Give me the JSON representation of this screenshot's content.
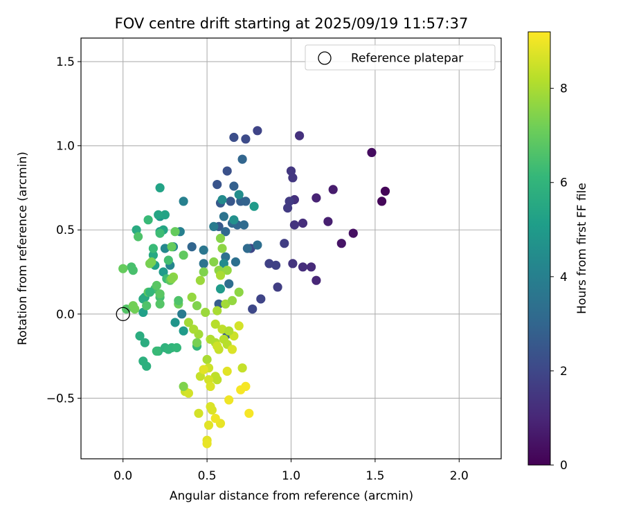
{
  "chart_data": {
    "type": "scatter",
    "title": "FOV centre drift starting at 2025/09/19 11:57:37",
    "xlabel": "Angular distance from reference (arcmin)",
    "ylabel": "Rotation from reference (arcmin)",
    "xlim": [
      -0.25,
      2.25
    ],
    "ylim": [
      -0.86,
      1.64
    ],
    "xticks": [
      0.0,
      0.5,
      1.0,
      1.5,
      2.0
    ],
    "xtick_labels": [
      "0.0",
      "0.5",
      "1.0",
      "1.5",
      "2.0"
    ],
    "yticks": [
      -0.5,
      0.0,
      0.5,
      1.0,
      1.5
    ],
    "ytick_labels": [
      "−0.5",
      "0.0",
      "0.5",
      "1.0",
      "1.5"
    ],
    "grid": true,
    "legend": {
      "placement": "top-right",
      "entries": [
        "Reference platepar"
      ]
    },
    "colorbar": {
      "label": "Hours from first FF file",
      "range": [
        0,
        9.2
      ],
      "ticks": [
        0,
        2,
        4,
        6,
        8
      ],
      "tick_labels": [
        "0",
        "2",
        "4",
        "6",
        "8"
      ],
      "colormap": "viridis"
    },
    "reference_point": {
      "x": 0.0,
      "y": 0.0
    },
    "colormap_stops": [
      "#440154",
      "#482878",
      "#3e4989",
      "#31688e",
      "#26828e",
      "#1f9e89",
      "#35b779",
      "#6ece58",
      "#b5de2b",
      "#fde725"
    ],
    "points": [
      {
        "x": 1.56,
        "y": 0.73,
        "h": 0.1
      },
      {
        "x": 1.54,
        "y": 0.67,
        "h": 0.15
      },
      {
        "x": 1.48,
        "y": 0.96,
        "h": 0.3
      },
      {
        "x": 1.37,
        "y": 0.48,
        "h": 0.4
      },
      {
        "x": 1.3,
        "y": 0.42,
        "h": 0.5
      },
      {
        "x": 1.25,
        "y": 0.74,
        "h": 0.7
      },
      {
        "x": 1.22,
        "y": 0.55,
        "h": 0.8
      },
      {
        "x": 1.15,
        "y": 0.69,
        "h": 0.9
      },
      {
        "x": 1.15,
        "y": 0.2,
        "h": 1.0
      },
      {
        "x": 1.12,
        "y": 0.28,
        "h": 1.1
      },
      {
        "x": 1.07,
        "y": 0.28,
        "h": 1.2
      },
      {
        "x": 1.07,
        "y": 0.54,
        "h": 1.2
      },
      {
        "x": 1.05,
        "y": 1.06,
        "h": 1.3
      },
      {
        "x": 1.02,
        "y": 0.68,
        "h": 1.3
      },
      {
        "x": 1.02,
        "y": 0.53,
        "h": 1.4
      },
      {
        "x": 1.01,
        "y": 0.3,
        "h": 1.4
      },
      {
        "x": 1.0,
        "y": 0.85,
        "h": 1.5
      },
      {
        "x": 1.01,
        "y": 0.81,
        "h": 1.5
      },
      {
        "x": 0.99,
        "y": 0.67,
        "h": 1.6
      },
      {
        "x": 0.98,
        "y": 0.63,
        "h": 1.6
      },
      {
        "x": 0.96,
        "y": 0.42,
        "h": 1.7
      },
      {
        "x": 0.92,
        "y": 0.16,
        "h": 1.7
      },
      {
        "x": 0.91,
        "y": 0.29,
        "h": 1.8
      },
      {
        "x": 0.87,
        "y": 0.3,
        "h": 1.8
      },
      {
        "x": 0.82,
        "y": 0.09,
        "h": 1.9
      },
      {
        "x": 0.8,
        "y": 1.09,
        "h": 1.9
      },
      {
        "x": 0.77,
        "y": 0.03,
        "h": 2.0
      },
      {
        "x": 0.76,
        "y": 0.39,
        "h": 2.0
      },
      {
        "x": 0.73,
        "y": 1.04,
        "h": 2.1
      },
      {
        "x": 0.66,
        "y": 1.05,
        "h": 2.2
      },
      {
        "x": 0.62,
        "y": 0.85,
        "h": 2.3
      },
      {
        "x": 0.56,
        "y": 0.77,
        "h": 2.4
      },
      {
        "x": 0.64,
        "y": 0.67,
        "h": 2.5
      },
      {
        "x": 0.58,
        "y": 0.66,
        "h": 2.6
      },
      {
        "x": 0.57,
        "y": 0.52,
        "h": 2.6
      },
      {
        "x": 0.57,
        "y": 0.06,
        "h": 2.7
      },
      {
        "x": 0.62,
        "y": -0.12,
        "h": 2.7
      },
      {
        "x": 0.66,
        "y": 0.76,
        "h": 2.8
      },
      {
        "x": 0.7,
        "y": 0.67,
        "h": 2.8
      },
      {
        "x": 0.73,
        "y": 0.67,
        "h": 2.9
      },
      {
        "x": 0.71,
        "y": 0.92,
        "h": 3.0
      },
      {
        "x": 0.68,
        "y": 0.53,
        "h": 3.0
      },
      {
        "x": 0.65,
        "y": 0.54,
        "h": 3.1
      },
      {
        "x": 0.61,
        "y": 0.49,
        "h": 3.1
      },
      {
        "x": 0.72,
        "y": 0.53,
        "h": 3.2
      },
      {
        "x": 0.74,
        "y": 0.39,
        "h": 3.2
      },
      {
        "x": 0.8,
        "y": 0.41,
        "h": 3.3
      },
      {
        "x": 0.63,
        "y": 0.18,
        "h": 3.3
      },
      {
        "x": 0.61,
        "y": 0.34,
        "h": 3.4
      },
      {
        "x": 0.67,
        "y": 0.31,
        "h": 3.4
      },
      {
        "x": 0.6,
        "y": 0.58,
        "h": 3.5
      },
      {
        "x": 0.41,
        "y": 0.4,
        "h": 3.0
      },
      {
        "x": 0.48,
        "y": 0.3,
        "h": 3.5
      },
      {
        "x": 0.48,
        "y": 0.38,
        "h": 3.6
      },
      {
        "x": 0.35,
        "y": 0.0,
        "h": 3.8
      },
      {
        "x": 0.54,
        "y": 0.52,
        "h": 3.8
      },
      {
        "x": 0.36,
        "y": 0.67,
        "h": 4.0
      },
      {
        "x": 0.34,
        "y": 0.49,
        "h": 4.0
      },
      {
        "x": 0.3,
        "y": 0.4,
        "h": 4.2
      },
      {
        "x": 0.28,
        "y": 0.29,
        "h": 4.2
      },
      {
        "x": 0.25,
        "y": 0.39,
        "h": 4.3
      },
      {
        "x": 0.59,
        "y": 0.68,
        "h": 4.4
      },
      {
        "x": 0.6,
        "y": 0.3,
        "h": 4.4
      },
      {
        "x": 0.69,
        "y": 0.71,
        "h": 4.5
      },
      {
        "x": 0.66,
        "y": 0.56,
        "h": 4.6
      },
      {
        "x": 0.78,
        "y": 0.64,
        "h": 5.0
      },
      {
        "x": 0.58,
        "y": 0.15,
        "h": 5.0
      },
      {
        "x": 0.31,
        "y": -0.05,
        "h": 4.8
      },
      {
        "x": 0.36,
        "y": -0.1,
        "h": 5.0
      },
      {
        "x": 0.22,
        "y": 0.58,
        "h": 4.8
      },
      {
        "x": 0.24,
        "y": 0.25,
        "h": 5.0
      },
      {
        "x": 0.22,
        "y": 0.49,
        "h": 5.1
      },
      {
        "x": 0.19,
        "y": 0.29,
        "h": 5.2
      },
      {
        "x": 0.12,
        "y": 0.01,
        "h": 5.2
      },
      {
        "x": 0.22,
        "y": 0.75,
        "h": 5.3
      },
      {
        "x": 0.25,
        "y": 0.59,
        "h": 5.3
      },
      {
        "x": 0.24,
        "y": 0.5,
        "h": 5.4
      },
      {
        "x": 0.21,
        "y": 0.59,
        "h": 5.4
      },
      {
        "x": 0.18,
        "y": 0.35,
        "h": 5.5
      },
      {
        "x": 0.13,
        "y": 0.1,
        "h": 5.5
      },
      {
        "x": 0.12,
        "y": 0.09,
        "h": 5.6
      },
      {
        "x": 0.08,
        "y": 0.5,
        "h": 5.6
      },
      {
        "x": 0.1,
        "y": -0.13,
        "h": 5.7
      },
      {
        "x": 0.13,
        "y": -0.17,
        "h": 5.7
      },
      {
        "x": 0.12,
        "y": -0.28,
        "h": 5.8
      },
      {
        "x": 0.14,
        "y": -0.31,
        "h": 5.8
      },
      {
        "x": 0.21,
        "y": -0.22,
        "h": 5.9
      },
      {
        "x": 0.25,
        "y": -0.2,
        "h": 5.9
      },
      {
        "x": 0.27,
        "y": -0.21,
        "h": 6.0
      },
      {
        "x": 0.29,
        "y": -0.2,
        "h": 6.0
      },
      {
        "x": 0.32,
        "y": -0.2,
        "h": 6.1
      },
      {
        "x": 0.44,
        "y": -0.19,
        "h": 6.1
      },
      {
        "x": 0.15,
        "y": 0.56,
        "h": 6.2
      },
      {
        "x": 0.18,
        "y": 0.39,
        "h": 6.2
      },
      {
        "x": 0.22,
        "y": 0.48,
        "h": 6.3
      },
      {
        "x": 0.26,
        "y": 0.21,
        "h": 6.3
      },
      {
        "x": 0.19,
        "y": 0.15,
        "h": 6.4
      },
      {
        "x": 0.22,
        "y": 0.1,
        "h": 6.4
      },
      {
        "x": 0.05,
        "y": 0.28,
        "h": 6.5
      },
      {
        "x": 0.06,
        "y": 0.26,
        "h": 6.5
      },
      {
        "x": 0.09,
        "y": 0.46,
        "h": 6.6
      },
      {
        "x": 0.14,
        "y": 0.05,
        "h": 6.6
      },
      {
        "x": 0.02,
        "y": 0.03,
        "h": 6.7
      },
      {
        "x": 0.22,
        "y": 0.06,
        "h": 6.7
      },
      {
        "x": 0.22,
        "y": 0.12,
        "h": 6.8
      },
      {
        "x": 0.2,
        "y": 0.17,
        "h": 6.8
      },
      {
        "x": 0.28,
        "y": 0.2,
        "h": 6.9
      },
      {
        "x": 0.36,
        "y": 0.35,
        "h": 6.9
      },
      {
        "x": 0.29,
        "y": 0.4,
        "h": 7.0
      },
      {
        "x": 0.31,
        "y": 0.49,
        "h": 7.0
      },
      {
        "x": 0.33,
        "y": 0.06,
        "h": 7.1
      },
      {
        "x": 0.0,
        "y": 0.27,
        "h": 7.0
      },
      {
        "x": 0.06,
        "y": 0.05,
        "h": 7.2
      },
      {
        "x": 0.07,
        "y": 0.03,
        "h": 7.2
      },
      {
        "x": 0.17,
        "y": 0.31,
        "h": 7.3
      },
      {
        "x": 0.16,
        "y": 0.3,
        "h": 7.3
      },
      {
        "x": 0.44,
        "y": 0.05,
        "h": 7.4
      },
      {
        "x": 0.48,
        "y": 0.25,
        "h": 7.4
      },
      {
        "x": 0.58,
        "y": 0.45,
        "h": 7.5
      },
      {
        "x": 0.54,
        "y": 0.31,
        "h": 7.5
      },
      {
        "x": 0.57,
        "y": 0.26,
        "h": 7.6
      },
      {
        "x": 0.59,
        "y": 0.39,
        "h": 7.6
      },
      {
        "x": 0.62,
        "y": 0.26,
        "h": 7.7
      },
      {
        "x": 0.41,
        "y": 0.1,
        "h": 7.7
      },
      {
        "x": 0.46,
        "y": 0.2,
        "h": 7.8
      },
      {
        "x": 0.49,
        "y": 0.01,
        "h": 7.8
      },
      {
        "x": 0.39,
        "y": -0.05,
        "h": 7.9
      },
      {
        "x": 0.45,
        "y": -0.12,
        "h": 7.9
      },
      {
        "x": 0.42,
        "y": -0.09,
        "h": 8.0
      },
      {
        "x": 0.5,
        "y": -0.27,
        "h": 8.0
      },
      {
        "x": 0.52,
        "y": -0.15,
        "h": 8.1
      },
      {
        "x": 0.55,
        "y": -0.17,
        "h": 8.1
      },
      {
        "x": 0.6,
        "y": -0.15,
        "h": 8.2
      },
      {
        "x": 0.62,
        "y": -0.18,
        "h": 8.2
      },
      {
        "x": 0.56,
        "y": -0.39,
        "h": 8.3
      },
      {
        "x": 0.55,
        "y": -0.37,
        "h": 8.3
      },
      {
        "x": 0.46,
        "y": -0.37,
        "h": 8.4
      },
      {
        "x": 0.48,
        "y": -0.33,
        "h": 8.4
      },
      {
        "x": 0.51,
        "y": -0.32,
        "h": 8.5
      },
      {
        "x": 0.37,
        "y": -0.46,
        "h": 8.5
      },
      {
        "x": 0.39,
        "y": -0.47,
        "h": 8.6
      },
      {
        "x": 0.45,
        "y": -0.59,
        "h": 8.6
      },
      {
        "x": 0.52,
        "y": -0.55,
        "h": 8.7
      },
      {
        "x": 0.53,
        "y": -0.57,
        "h": 8.7
      },
      {
        "x": 0.51,
        "y": -0.66,
        "h": 8.8
      },
      {
        "x": 0.5,
        "y": -0.75,
        "h": 8.8
      },
      {
        "x": 0.5,
        "y": -0.77,
        "h": 8.9
      },
      {
        "x": 0.58,
        "y": -0.65,
        "h": 8.9
      },
      {
        "x": 0.55,
        "y": -0.62,
        "h": 9.0
      },
      {
        "x": 0.63,
        "y": -0.51,
        "h": 9.0
      },
      {
        "x": 0.7,
        "y": -0.45,
        "h": 9.1
      },
      {
        "x": 0.73,
        "y": -0.43,
        "h": 9.1
      },
      {
        "x": 0.75,
        "y": -0.59,
        "h": 9.1
      },
      {
        "x": 0.62,
        "y": -0.34,
        "h": 8.8
      },
      {
        "x": 0.71,
        "y": -0.32,
        "h": 8.4
      },
      {
        "x": 0.69,
        "y": -0.07,
        "h": 8.6
      },
      {
        "x": 0.66,
        "y": -0.13,
        "h": 8.5
      },
      {
        "x": 0.65,
        "y": -0.21,
        "h": 8.7
      },
      {
        "x": 0.57,
        "y": -0.21,
        "h": 8.4
      },
      {
        "x": 0.59,
        "y": -0.09,
        "h": 8.3
      },
      {
        "x": 0.55,
        "y": -0.06,
        "h": 8.2
      },
      {
        "x": 0.56,
        "y": 0.02,
        "h": 8.0
      },
      {
        "x": 0.61,
        "y": 0.06,
        "h": 7.9
      },
      {
        "x": 0.63,
        "y": -0.1,
        "h": 8.1
      },
      {
        "x": 0.65,
        "y": 0.08,
        "h": 7.7
      },
      {
        "x": 0.69,
        "y": 0.13,
        "h": 7.6
      },
      {
        "x": 0.58,
        "y": 0.23,
        "h": 8.0
      },
      {
        "x": 0.51,
        "y": -0.39,
        "h": 8.6
      },
      {
        "x": 0.52,
        "y": -0.43,
        "h": 8.7
      },
      {
        "x": 0.56,
        "y": -0.19,
        "h": 8.5
      },
      {
        "x": 0.48,
        "y": -0.33,
        "h": 8.8
      },
      {
        "x": 0.36,
        "y": -0.43,
        "h": 7.4
      },
      {
        "x": 0.3,
        "y": 0.22,
        "h": 7.6
      },
      {
        "x": 0.29,
        "y": 0.21,
        "h": 7.5
      },
      {
        "x": 0.2,
        "y": -0.22,
        "h": 6.2
      },
      {
        "x": 0.15,
        "y": 0.13,
        "h": 6.9
      },
      {
        "x": 0.27,
        "y": 0.32,
        "h": 6.4
      },
      {
        "x": 0.33,
        "y": 0.08,
        "h": 6.6
      },
      {
        "x": 0.16,
        "y": 0.13,
        "h": 6.1
      },
      {
        "x": 0.44,
        "y": -0.17,
        "h": 7.3
      }
    ]
  }
}
